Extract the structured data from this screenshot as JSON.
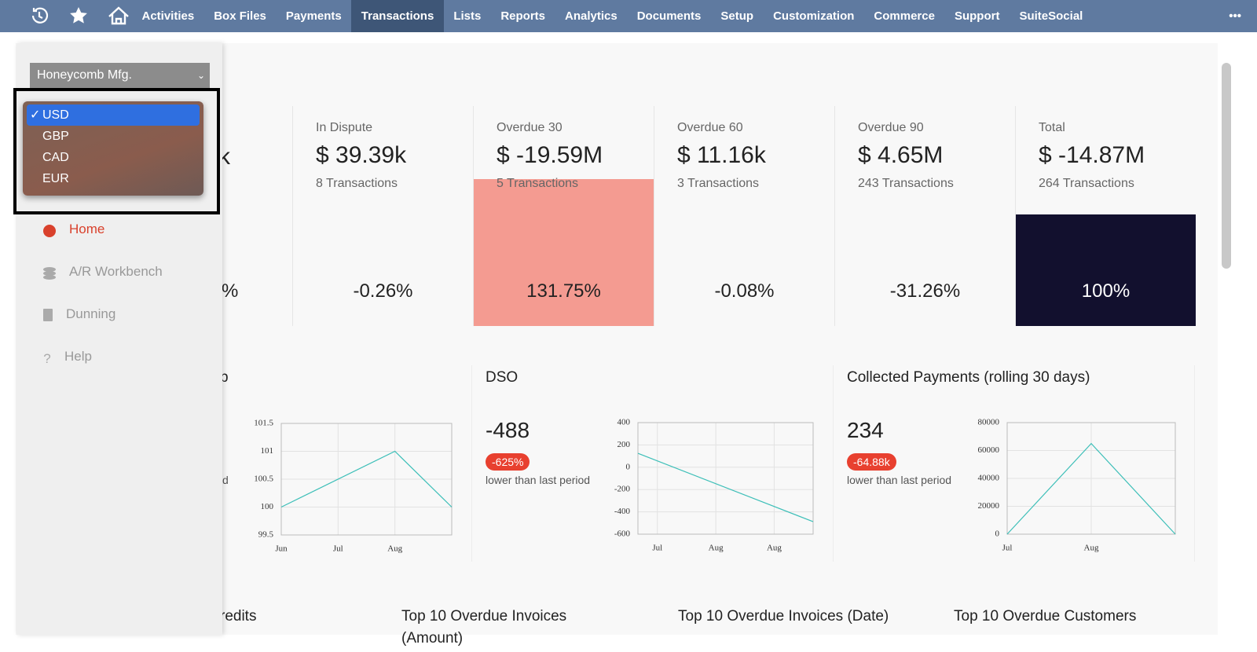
{
  "nav": {
    "items": [
      "Activities",
      "Box Files",
      "Payments",
      "Transactions",
      "Lists",
      "Reports",
      "Analytics",
      "Documents",
      "Setup",
      "Customization",
      "Commerce",
      "Support",
      "SuiteSocial"
    ],
    "active": 3,
    "more": "•••"
  },
  "sidebar": {
    "company": "Honeycomb Mfg.",
    "check": "✓",
    "currency_options": [
      "USD",
      "GBP",
      "CAD",
      "EUR"
    ],
    "menu": [
      "Home",
      "A/R Workbench",
      "Dunning",
      "Help"
    ]
  },
  "first_card": {
    "amount_tail": "k",
    "percent_tail": "%"
  },
  "cards": [
    {
      "label": "In Dispute",
      "amount": "$ 39.39k",
      "transactions": "8 Transactions",
      "percent": -0.26,
      "percent_label": "-0.26%",
      "color": "#f49b91"
    },
    {
      "label": "Overdue 30",
      "amount": "$ -19.59M",
      "transactions": "5 Transactions",
      "percent": 131.75,
      "percent_label": "131.75%",
      "color": "#f49b91"
    },
    {
      "label": "Overdue 60",
      "amount": "$ 11.16k",
      "transactions": "3 Transactions",
      "percent": -0.08,
      "percent_label": "-0.08%",
      "color": "#f49b91"
    },
    {
      "label": "Overdue 90",
      "amount": "$ 4.65M",
      "transactions": "243 Transactions",
      "percent": -31.26,
      "percent_label": "-31.26%",
      "color": "#f49b91"
    },
    {
      "label": "Total",
      "amount": "$ -14.87M",
      "transactions": "264 Transactions",
      "percent": 100,
      "percent_label": "100%",
      "color": "#12102e"
    }
  ],
  "charts": [
    {
      "type": "line",
      "title": "p",
      "note": "d",
      "color": "#3dbfb8",
      "xlim": [
        0,
        3
      ],
      "xticks": [
        {
          "value": 0,
          "label": "Jun"
        },
        {
          "value": 1,
          "label": "Jul"
        },
        {
          "value": 2,
          "label": "Aug"
        }
      ],
      "x": [
        0,
        2,
        3
      ],
      "values": [
        100,
        101,
        100
      ],
      "ylim": [
        99.5,
        101.5
      ],
      "yticks": [
        99.5,
        100,
        100.5,
        101,
        101.5
      ]
    },
    {
      "type": "line",
      "title": "DSO",
      "kpi": -488,
      "badge": "-625%",
      "note": "lower than last period",
      "color": "#3dbfb8",
      "xlim": [
        0,
        9
      ],
      "xticks": [
        {
          "value": 1,
          "label": "Jul"
        },
        {
          "value": 4,
          "label": "Aug"
        },
        {
          "value": 7,
          "label": "Aug"
        }
      ],
      "x": [
        0,
        9
      ],
      "values": [
        125,
        -488
      ],
      "ylim": [
        -600,
        400
      ],
      "yticks": [
        -600,
        -400,
        -200,
        0,
        200,
        400
      ]
    },
    {
      "type": "line",
      "title": "Collected Payments (rolling 30 days)",
      "kpi": 234,
      "badge": "-64.88k",
      "note": "lower than last period",
      "color": "#3dbfb8",
      "xlim": [
        0,
        2
      ],
      "xticks": [
        {
          "value": 0,
          "label": "Jul"
        },
        {
          "value": 1,
          "label": "Aug"
        }
      ],
      "x": [
        0,
        1,
        2
      ],
      "values": [
        0,
        65000,
        0
      ],
      "ylim": [
        0,
        80000
      ],
      "yticks": [
        0,
        20000,
        40000,
        60000,
        80000
      ]
    }
  ],
  "sections": [
    "redits",
    "Top 10 Overdue Invoices (Amount)",
    "Top 10 Overdue Invoices (Date)",
    "Top 10 Overdue Customers"
  ]
}
